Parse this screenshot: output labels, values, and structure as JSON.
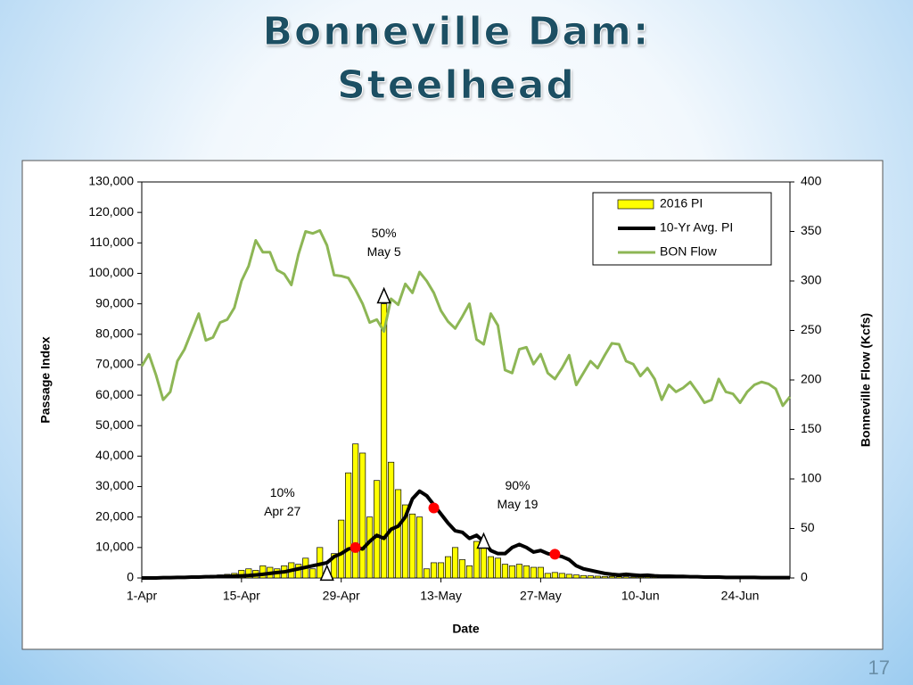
{
  "slide": {
    "title_lines": [
      "Bonneville Dam:",
      "Steelhead"
    ],
    "page_number": "17"
  },
  "chart_data": {
    "type": "combo",
    "xlabel": "Date",
    "ylabel": "Passage Index",
    "y2label": "Bonneville  Flow  (Kcfs)",
    "categories": [
      "1-Apr",
      null,
      null,
      null,
      null,
      null,
      null,
      null,
      null,
      null,
      null,
      null,
      null,
      null,
      "15-Apr",
      null,
      null,
      null,
      null,
      null,
      null,
      null,
      null,
      null,
      null,
      null,
      null,
      null,
      "29-Apr",
      null,
      null,
      null,
      null,
      null,
      null,
      null,
      null,
      null,
      null,
      null,
      null,
      null,
      "13-May",
      null,
      null,
      null,
      null,
      null,
      null,
      null,
      null,
      null,
      null,
      null,
      null,
      null,
      "27-May",
      null,
      null,
      null,
      null,
      null,
      null,
      null,
      null,
      null,
      null,
      null,
      null,
      null,
      "10-Jun",
      null,
      null,
      null,
      null,
      null,
      null,
      null,
      null,
      null,
      null,
      null,
      null,
      null,
      "24-Jun",
      null,
      null,
      null,
      null,
      null,
      null,
      null
    ],
    "ylim": [
      0,
      130000
    ],
    "yticks": [
      0,
      {
        "value": 10000,
        "label": "10,000"
      },
      {
        "value": 20000,
        "label": "20,000"
      },
      {
        "value": 30000,
        "label": "30,000"
      },
      {
        "value": 40000,
        "label": "40,000"
      },
      {
        "value": 50000,
        "label": "50,000"
      },
      {
        "value": 60000,
        "label": "60,000"
      },
      {
        "value": 70000,
        "label": "70,000"
      },
      {
        "value": 80000,
        "label": "80,000"
      },
      {
        "value": 90000,
        "label": "90,000"
      },
      {
        "value": 100000,
        "label": "100,000"
      },
      {
        "value": 110000,
        "label": "110,000"
      },
      {
        "value": 120000,
        "label": "120,000"
      },
      {
        "value": 130000,
        "label": "130,000"
      }
    ],
    "y2lim": [
      0,
      400
    ],
    "y2ticks": [
      0,
      50,
      100,
      150,
      200,
      250,
      300,
      350,
      400
    ],
    "legend": "upper right",
    "series": [
      {
        "name": "2016 PI",
        "type": "bar",
        "color": "#ffff00",
        "values": [
          200,
          200,
          300,
          300,
          400,
          500,
          500,
          600,
          700,
          800,
          900,
          1000,
          1200,
          1500,
          2500,
          3000,
          2500,
          4000,
          3500,
          3000,
          4000,
          5000,
          4500,
          6500,
          3000,
          10000,
          2000,
          8000,
          19000,
          34500,
          44000,
          41000,
          20000,
          32000,
          90000,
          38000,
          29000,
          24000,
          21000,
          20000,
          3000,
          5000,
          5000,
          7000,
          10000,
          6000,
          4000,
          12000,
          12000,
          7000,
          6500,
          4500,
          4000,
          4500,
          4000,
          3500,
          3500,
          1500,
          1800,
          1500,
          1200,
          1000,
          800,
          700,
          600,
          500,
          500,
          400,
          400,
          300,
          300,
          300,
          250,
          250,
          200,
          200,
          200,
          200,
          150,
          150,
          150,
          150,
          100,
          100,
          100,
          100,
          100,
          100,
          100,
          100,
          100,
          100
        ]
      },
      {
        "name": "10-Yr Avg. PI",
        "type": "line",
        "color": "#000000",
        "values": [
          0,
          0,
          0,
          100,
          100,
          200,
          200,
          300,
          300,
          400,
          400,
          500,
          500,
          600,
          700,
          800,
          1000,
          1200,
          1500,
          1800,
          2000,
          2500,
          3000,
          3500,
          4000,
          4500,
          5000,
          7000,
          8000,
          9500,
          10000,
          9500,
          12000,
          14000,
          13000,
          16000,
          17000,
          20000,
          26000,
          28500,
          27000,
          24000,
          21000,
          18000,
          15500,
          15000,
          13000,
          14000,
          12000,
          9000,
          8000,
          8000,
          10000,
          11000,
          10000,
          8500,
          9000,
          8000,
          7500,
          7000,
          6000,
          4000,
          3000,
          2500,
          2000,
          1500,
          1200,
          1000,
          1200,
          1000,
          800,
          900,
          700,
          600,
          600,
          500,
          500,
          400,
          400,
          300,
          300,
          300,
          200,
          200,
          200,
          200,
          200,
          100,
          100,
          100,
          100,
          100
        ]
      },
      {
        "name": "BON Flow",
        "type": "line",
        "axis": "y2",
        "color": "#8db655",
        "values": [
          214,
          226,
          205,
          180,
          188,
          219,
          231,
          249,
          267,
          240,
          243,
          258,
          261,
          273,
          300,
          315,
          341,
          329,
          329,
          311,
          307,
          296,
          327,
          350,
          348,
          351,
          336,
          306,
          305,
          303,
          291,
          277,
          258,
          261,
          249,
          282,
          276,
          297,
          288,
          309,
          300,
          288,
          270,
          259,
          252,
          264,
          277,
          241,
          236,
          267,
          255,
          210,
          207,
          231,
          233,
          216,
          226,
          207,
          201,
          212,
          225,
          195,
          207,
          219,
          212,
          225,
          237,
          236,
          219,
          216,
          204,
          212,
          201,
          180,
          195,
          188,
          192,
          198,
          188,
          177,
          180,
          201,
          188,
          186,
          177,
          188,
          195,
          198,
          196,
          191,
          174,
          183
        ]
      }
    ],
    "markers": {
      "color": "#ff0000",
      "points": [
        {
          "at": 30,
          "value": 10000
        },
        {
          "at": 41,
          "value": 23000
        },
        {
          "at": 58,
          "value": 7800
        }
      ]
    },
    "annotations": [
      {
        "lines": [
          "10%",
          "Apr 27"
        ],
        "at": 26,
        "value": 4000
      },
      {
        "lines": [
          "50%",
          "May 5"
        ],
        "at": 34,
        "value": 95000
      },
      {
        "lines": [
          "90%",
          "May 19"
        ],
        "at": 48,
        "value": 14500
      }
    ]
  }
}
